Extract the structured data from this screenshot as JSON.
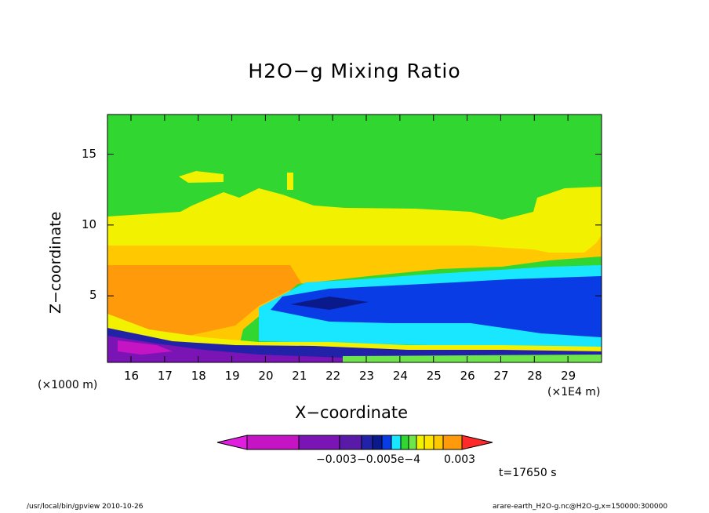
{
  "title": "H2O−g Mixing Ratio",
  "footer_left": "/usr/local/bin/gpview  2010-10-26",
  "footer_right": "arare-earth_H2O-g.nc@H2O-g,x=150000:300000",
  "time_label": "t=17650 s",
  "colors": {
    "green": "#31d631",
    "yellow": "#f2f200",
    "gold": "#ffc800",
    "orange": "#ff9a0a",
    "cyan": "#19e6ff",
    "blue": "#0a3ce6",
    "navy": "#0a1a8a",
    "indigo": "#2222a8",
    "purple": "#7a14b4",
    "magenta": "#c414c4",
    "lime": "#6ee64b",
    "red": "#ff2a2a"
  },
  "chart_data": {
    "type": "heatmap",
    "title": "H2O−g Mixing Ratio",
    "xlabel": "X−coordinate",
    "ylabel": "Z−coordinate",
    "x_unit_left": "(×1000 m)",
    "x_unit_right": "(×1E4 m)",
    "xlim": [
      15.3,
      30.0
    ],
    "ylim": [
      0.3,
      17.8
    ],
    "x_ticks": [
      "16",
      "17",
      "18",
      "19",
      "20",
      "21",
      "22",
      "23",
      "24",
      "25",
      "26",
      "27",
      "28",
      "29"
    ],
    "y_ticks": [
      "5",
      "10",
      "15"
    ],
    "colorbar_labels": [
      "−0.003",
      "−0.005e−4",
      "0.003"
    ],
    "colorbar_colors": [
      "#e01ee0",
      "#c414c4",
      "#7a14b4",
      "#5a1aa8",
      "#2222a8",
      "#0a1a8a",
      "#0a3ce6",
      "#19e6ff",
      "#31d631",
      "#6ee64b",
      "#f2f200",
      "#ffe600",
      "#ffc800",
      "#ff9a0a",
      "#ff2a2a"
    ],
    "regions": [
      {
        "name": "upper",
        "color_key": "green"
      },
      {
        "name": "yellow-band",
        "color_key": "yellow"
      },
      {
        "name": "gold-band",
        "color_key": "gold"
      },
      {
        "name": "orange-region",
        "color_key": "orange"
      },
      {
        "name": "cyan-region",
        "color_key": "cyan"
      },
      {
        "name": "blue-region",
        "color_key": "blue"
      },
      {
        "name": "purple-base",
        "color_key": "purple"
      }
    ]
  }
}
